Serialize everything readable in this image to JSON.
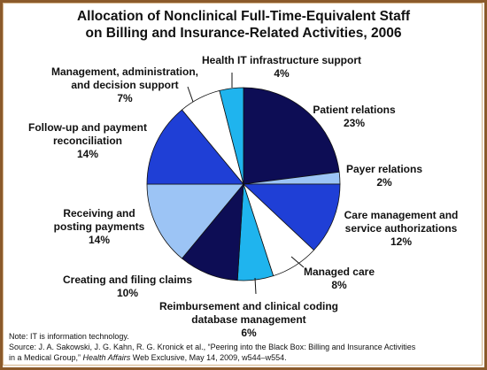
{
  "title_line1": "Allocation of Nonclinical Full-Time-Equivalent Staff",
  "title_line2": "on Billing and Insurance-Related Activities, 2006",
  "note": "Note: IT is information technology.",
  "source_line1": "Source: J. A. Sakowski, J. G. Kahn, R. G. Kronick et al., “Peering into the Black Box: Billing and Insurance Activities",
  "source_line2_pre": "in a Medical Group,” ",
  "source_line2_journal": "Health Affairs",
  "source_line2_post": " Web Exclusive, May 14, 2009, w544–w554.",
  "colors": {
    "frame": "#8b5a2b",
    "navy": "#0d0d55",
    "royal_blue": "#1f3fd6",
    "light_blue": "#9cc4f5",
    "cyan": "#1fb4ee",
    "white": "#ffffff",
    "edge": "#111111"
  },
  "chart_data": {
    "type": "pie",
    "title": "Allocation of Nonclinical Full-Time-Equivalent Staff on Billing and Insurance-Related Activities, 2006",
    "slices": [
      {
        "name": "Patient relations",
        "value": 23,
        "label": "23%",
        "color": "#0d0d55"
      },
      {
        "name": "Payer relations",
        "value": 2,
        "label": "2%",
        "color": "#9cc4f5"
      },
      {
        "name": "Care management and service authorizations",
        "value": 12,
        "label": "12%",
        "color": "#1f3fd6"
      },
      {
        "name": "Managed care",
        "value": 8,
        "label": "8%",
        "color": "#ffffff"
      },
      {
        "name": "Reimbursement and clinical coding database management",
        "value": 6,
        "label": "6%",
        "color": "#1fb4ee"
      },
      {
        "name": "Creating and filing claims",
        "value": 10,
        "label": "10%",
        "color": "#0d0d55"
      },
      {
        "name": "Receiving and posting payments",
        "value": 14,
        "label": "14%",
        "color": "#9cc4f5"
      },
      {
        "name": "Follow-up and payment reconciliation",
        "value": 14,
        "label": "14%",
        "color": "#1f3fd6"
      },
      {
        "name": "Management, administration, and decision support",
        "value": 7,
        "label": "7%",
        "color": "#ffffff"
      },
      {
        "name": "Health IT infrastructure support",
        "value": 4,
        "label": "4%",
        "color": "#1fb4ee"
      }
    ],
    "labels": [
      {
        "lines": [
          "Patient relations",
          "23%"
        ]
      },
      {
        "lines": [
          "Payer relations",
          "2%"
        ]
      },
      {
        "lines": [
          "Care management and",
          "service authorizations",
          "12%"
        ]
      },
      {
        "lines": [
          "Managed care",
          "8%"
        ]
      },
      {
        "lines": [
          "Reimbursement and clinical coding",
          "database management",
          "6%"
        ]
      },
      {
        "lines": [
          "Creating and filing claims",
          "10%"
        ]
      },
      {
        "lines": [
          "Receiving and",
          "posting payments",
          "14%"
        ]
      },
      {
        "lines": [
          "Follow-up and payment",
          "reconciliation",
          "14%"
        ]
      },
      {
        "lines": [
          "Management, administration,",
          "and decision support",
          "7%"
        ]
      },
      {
        "lines": [
          "Health IT infrastructure support",
          "4%"
        ]
      }
    ],
    "start_angle": "12 o'clock",
    "direction": "clockwise"
  }
}
